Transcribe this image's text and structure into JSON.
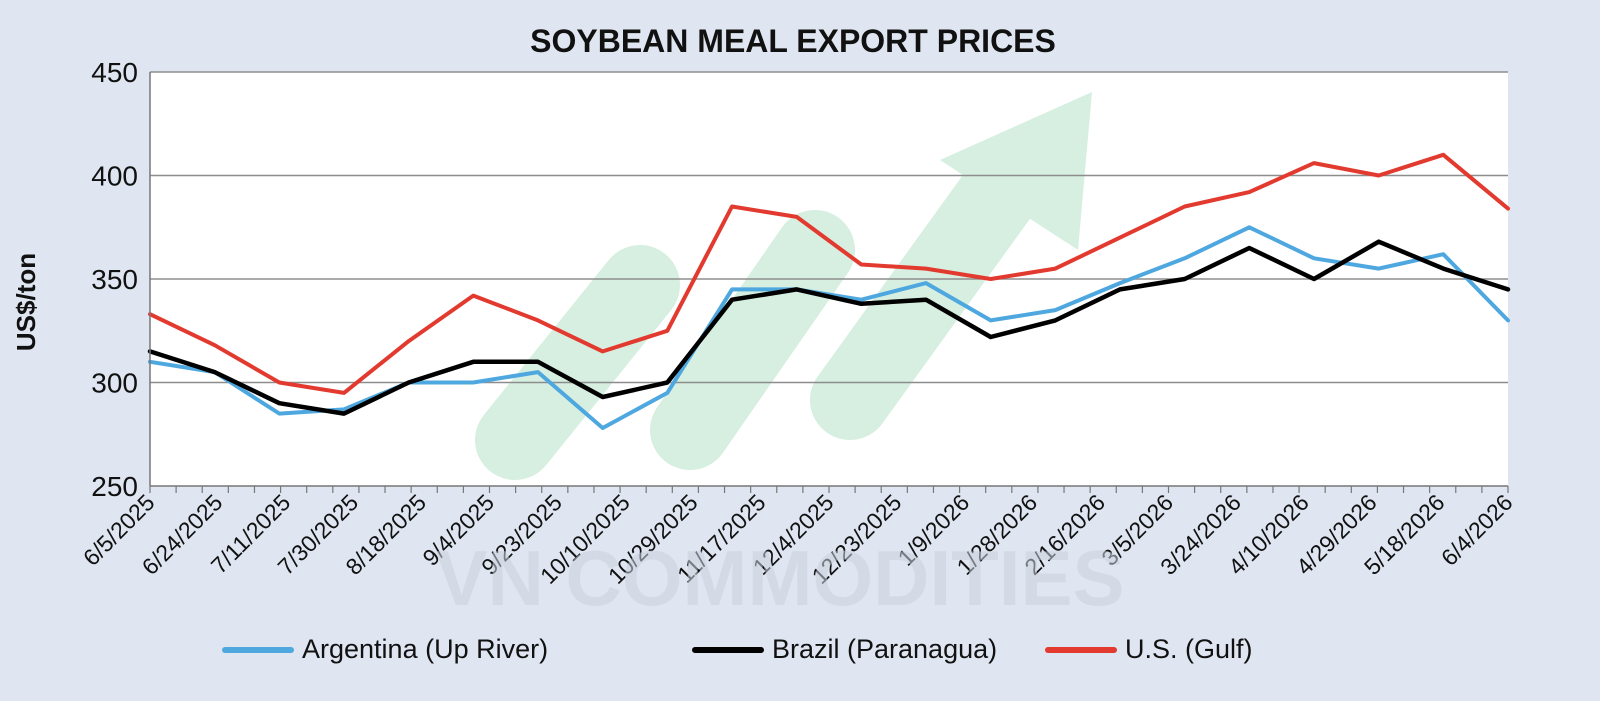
{
  "chart_data": {
    "type": "line",
    "title": "SOYBEAN MEAL EXPORT PRICES",
    "xlabel": "",
    "ylabel": "US$/ton",
    "ylim": [
      250,
      450
    ],
    "yticks": [
      250,
      300,
      350,
      400,
      450
    ],
    "x_tick_labels": [
      "6/5/2025",
      "6/24/2025",
      "7/11/2025",
      "7/30/2025",
      "8/18/2025",
      "9/4/2025",
      "9/23/2025",
      "10/10/2025",
      "10/29/2025",
      "11/17/2025",
      "12/4/2025",
      "12/23/2025",
      "1/9/2026",
      "1/28/2026",
      "2/16/2026",
      "3/5/2026",
      "3/24/2026",
      "4/10/2026",
      "4/29/2026",
      "5/18/2026",
      "6/4/2026"
    ],
    "grid": "horizontal",
    "legend_position": "bottom",
    "watermark": "VN COMMODITIES",
    "series": [
      {
        "name": "Argentina (Up River)",
        "color": "#4ea8df",
        "values": [
          310,
          305,
          285,
          287,
          300,
          300,
          305,
          278,
          295,
          345,
          345,
          340,
          348,
          330,
          335,
          348,
          360,
          375,
          360,
          355,
          362,
          330
        ]
      },
      {
        "name": "Brazil (Paranagua)",
        "color": "#000000",
        "values": [
          315,
          305,
          290,
          285,
          300,
          310,
          310,
          293,
          300,
          340,
          345,
          338,
          340,
          322,
          330,
          345,
          350,
          365,
          350,
          368,
          355,
          345
        ]
      },
      {
        "name": "U.S. (Gulf)",
        "color": "#e23a2f",
        "values": [
          333,
          318,
          300,
          295,
          320,
          342,
          330,
          315,
          325,
          385,
          380,
          357,
          355,
          350,
          355,
          370,
          385,
          392,
          406,
          400,
          410,
          384
        ]
      }
    ]
  }
}
